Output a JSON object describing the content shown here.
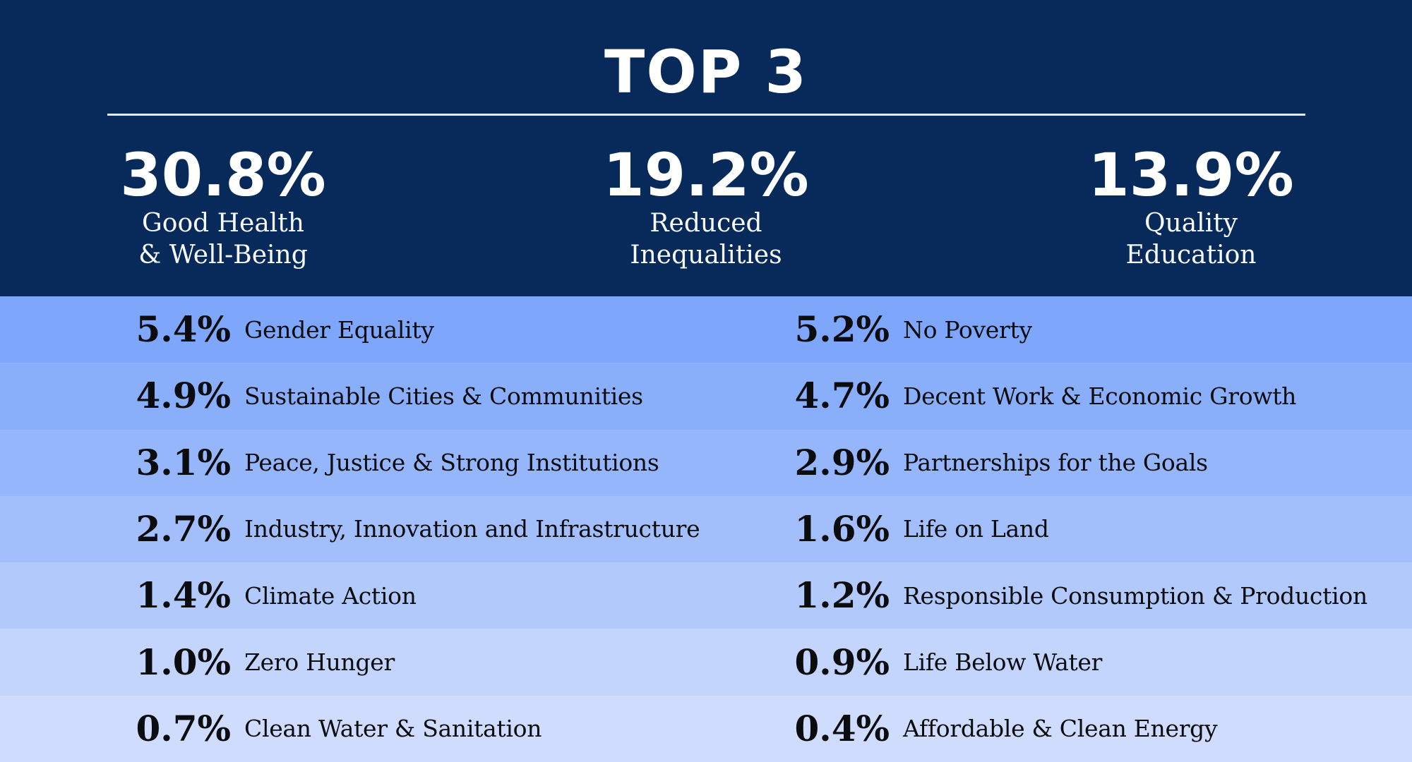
{
  "title": "TOP 3",
  "colors": {
    "header_bg": "#072a5a",
    "header_text": "#ffffff",
    "divider": "#e9edf3",
    "row_text": "#0b0c0f",
    "row_shades": [
      "#7ea6fa",
      "#89aefa",
      "#95b6fb",
      "#a2befb",
      "#b2c9fc",
      "#c3d4fd",
      "#cfdcfd"
    ]
  },
  "top3": [
    {
      "pct": "30.8%",
      "label_lines": [
        "Good Health",
        "& Well-Being"
      ]
    },
    {
      "pct": "19.2%",
      "label_lines": [
        "Reduced",
        "Inequalities"
      ]
    },
    {
      "pct": "13.9%",
      "label_lines": [
        "Quality",
        "Education"
      ]
    }
  ],
  "rows": [
    {
      "left": {
        "pct": "5.4%",
        "label": "Gender Equality"
      },
      "right": {
        "pct": "5.2%",
        "label": "No Poverty"
      }
    },
    {
      "left": {
        "pct": "4.9%",
        "label": "Sustainable Cities & Communities"
      },
      "right": {
        "pct": "4.7%",
        "label": "Decent Work & Economic Growth"
      }
    },
    {
      "left": {
        "pct": "3.1%",
        "label": "Peace, Justice & Strong Institutions"
      },
      "right": {
        "pct": "2.9%",
        "label": "Partnerships for the Goals"
      }
    },
    {
      "left": {
        "pct": "2.7%",
        "label": "Industry, Innovation and Infrastructure"
      },
      "right": {
        "pct": "1.6%",
        "label": "Life on Land"
      }
    },
    {
      "left": {
        "pct": "1.4%",
        "label": "Climate Action"
      },
      "right": {
        "pct": "1.2%",
        "label": "Responsible Consumption & Production"
      }
    },
    {
      "left": {
        "pct": "1.0%",
        "label": "Zero Hunger"
      },
      "right": {
        "pct": "0.9%",
        "label": "Life Below Water"
      }
    },
    {
      "left": {
        "pct": "0.7%",
        "label": "Clean Water & Sanitation"
      },
      "right": {
        "pct": "0.4%",
        "label": "Affordable & Clean Energy"
      }
    }
  ],
  "chart_data": {
    "type": "table",
    "title": "TOP 3",
    "value_unit": "%",
    "categories": [
      "Good Health & Well-Being",
      "Reduced Inequalities",
      "Quality Education",
      "Gender Equality",
      "No Poverty",
      "Sustainable Cities & Communities",
      "Decent Work & Economic Growth",
      "Peace, Justice & Strong Institutions",
      "Partnerships for the Goals",
      "Industry, Innovation and Infrastructure",
      "Life on Land",
      "Climate Action",
      "Responsible Consumption & Production",
      "Zero Hunger",
      "Life Below Water",
      "Clean Water & Sanitation",
      "Affordable & Clean Energy"
    ],
    "values": [
      30.8,
      19.2,
      13.9,
      5.4,
      5.2,
      4.9,
      4.7,
      3.1,
      2.9,
      2.7,
      1.6,
      1.4,
      1.2,
      1.0,
      0.9,
      0.7,
      0.4
    ]
  }
}
